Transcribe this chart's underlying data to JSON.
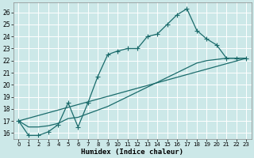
{
  "xlabel": "Humidex (Indice chaleur)",
  "bg_color": "#cce8e8",
  "grid_color": "#ffffff",
  "line_color": "#1a6b6b",
  "xlim": [
    -0.5,
    23.5
  ],
  "ylim": [
    15.5,
    26.8
  ],
  "xticks": [
    0,
    1,
    2,
    3,
    4,
    5,
    6,
    7,
    8,
    9,
    10,
    11,
    12,
    13,
    14,
    15,
    16,
    17,
    18,
    19,
    20,
    21,
    22,
    23
  ],
  "yticks": [
    16,
    17,
    18,
    19,
    20,
    21,
    22,
    23,
    24,
    25,
    26
  ],
  "line1_x": [
    0,
    1,
    2,
    3,
    4,
    5,
    6,
    7,
    8,
    9,
    10,
    11,
    12,
    13,
    14,
    15,
    16,
    17,
    18,
    19,
    20,
    21,
    22,
    23
  ],
  "line1_y": [
    17.0,
    15.8,
    15.8,
    16.1,
    16.7,
    18.5,
    16.5,
    18.5,
    20.7,
    22.5,
    22.8,
    23.0,
    23.0,
    24.0,
    24.2,
    25.0,
    25.8,
    26.3,
    24.5,
    23.8,
    23.3,
    22.2,
    22.2,
    22.2
  ],
  "line2_x": [
    0,
    1,
    2,
    3,
    4,
    5,
    6,
    7,
    8,
    9,
    10,
    11,
    12,
    13,
    14,
    15,
    16,
    17,
    18,
    19,
    20,
    21,
    22,
    23
  ],
  "line2_y": [
    17.0,
    16.5,
    16.5,
    16.6,
    16.8,
    17.2,
    17.3,
    17.6,
    17.9,
    18.2,
    18.6,
    19.0,
    19.4,
    19.8,
    20.2,
    20.6,
    21.0,
    21.4,
    21.8,
    22.0,
    22.1,
    22.2,
    22.2,
    22.2
  ],
  "line3_x": [
    0,
    23
  ],
  "line3_y": [
    17.0,
    22.2
  ],
  "marker_size": 2.5,
  "linewidth": 0.9
}
